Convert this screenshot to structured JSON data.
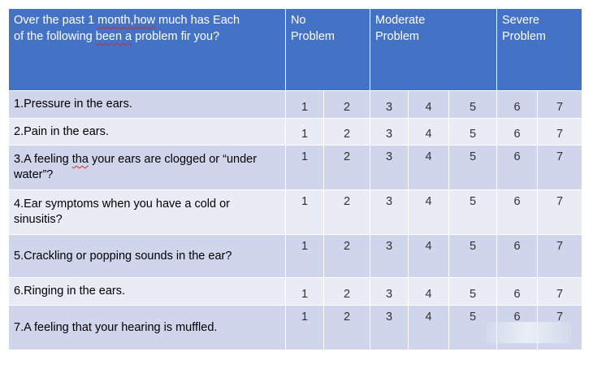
{
  "header": {
    "question_line1_a": "Over the past 1 ",
    "question_line1_b": "month,how",
    "question_line1_c": " much has Each",
    "question_line2_a": "of the following ",
    "question_line2_b": "been a",
    "question_line2_c": " problem fir you?",
    "col_no": "No\nProblem",
    "col_moderate": "Moderate\nProblem",
    "col_severe": "Severe\nProblem"
  },
  "scale": [
    "1",
    "2",
    "3",
    "4",
    "5",
    "6",
    "7"
  ],
  "rows": [
    {
      "text_a": "1.Pressure in the ears.",
      "text_b": "",
      "text_c": ""
    },
    {
      "text_a": "2.Pain in the ears.",
      "text_b": "",
      "text_c": ""
    },
    {
      "text_a": "3.A feeling ",
      "text_b": "tha",
      "text_c": " your ears are clogged or “under water”?"
    },
    {
      "text_a": "4.Ear symptoms when you have a cold or sinusitis?",
      "text_b": "",
      "text_c": ""
    },
    {
      "text_a": "5.Crackling or popping sounds in the ear?",
      "text_b": "",
      "text_c": ""
    },
    {
      "text_a": "6.Ringing in the ears.",
      "text_b": "",
      "text_c": ""
    },
    {
      "text_a": "7.A feeling that your hearing is muffled.",
      "text_b": "",
      "text_c": ""
    }
  ],
  "colors": {
    "header_bg": "#4472c4",
    "row_dark": "#cfd5ea",
    "row_light": "#e9ebf5"
  }
}
